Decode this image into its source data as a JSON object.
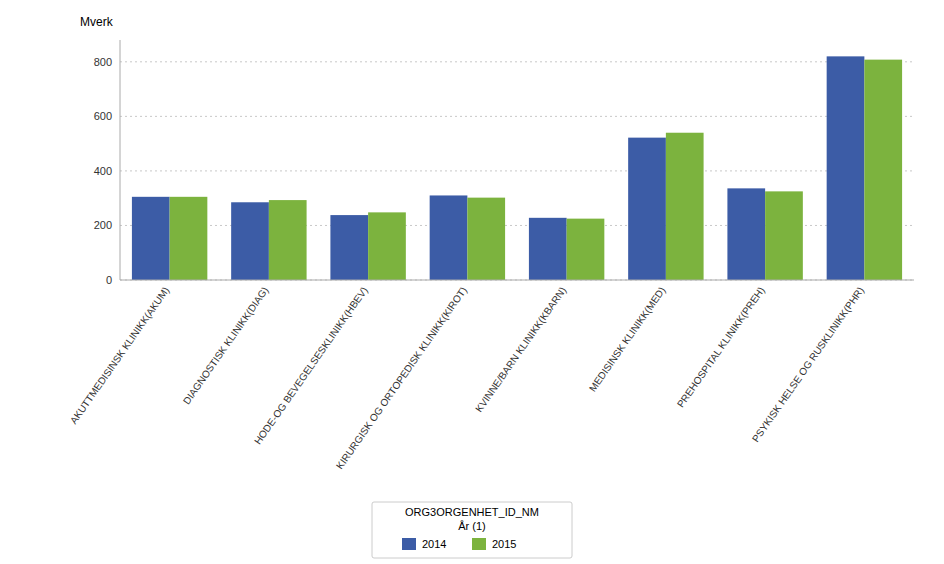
{
  "chart_data": {
    "type": "bar",
    "categories": [
      "AKUTTMEDISINSK KLINIKK(AKUM)",
      "DIAGNOSTISK KLINIKK(DIAG)",
      "HODE-OG BEVEGELSESKLINIKK(HBEV)",
      "KIRURGISK OG ORTOPEDISK KLINIKK(KIROT)",
      "KVINNE/BARN KLINIKK(KBARN)",
      "MEDISINSK KLINIKK(MED)",
      "PREHOSPITAL KLINIKK(PREH)",
      "PSYKISK HELSE OG RUSKLINIKK(PHR)"
    ],
    "series": [
      {
        "name": "2014",
        "color": "#3C5CA6",
        "values": [
          305,
          285,
          238,
          310,
          228,
          522,
          336,
          820
        ]
      },
      {
        "name": "2015",
        "color": "#7CB33E",
        "values": [
          305,
          293,
          248,
          302,
          225,
          540,
          325,
          808
        ]
      }
    ],
    "y_label": "Mverk",
    "legend_title": "ORG3ORGENHET_ID_NM",
    "legend_subtitle": "År (1)",
    "ylim": [
      0,
      880
    ],
    "yticks": [
      0,
      200,
      400,
      600,
      800
    ],
    "grid": true,
    "legend": "bottom"
  }
}
